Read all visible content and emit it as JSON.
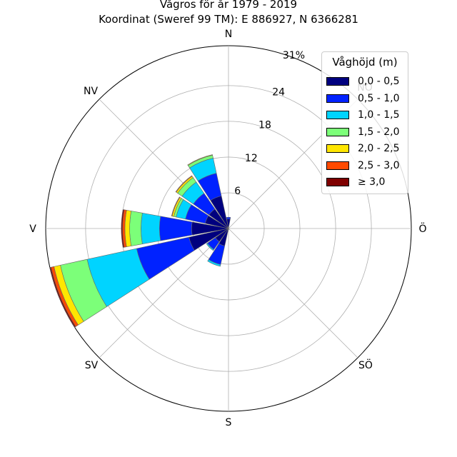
{
  "title_line1": "Vågros för år 1979 - 2019",
  "title_line2": "Koordinat (Sweref 99 TM): E 886927, N 6366281",
  "chart_data": {
    "type": "wind-rose",
    "directions": [
      "N",
      "NO",
      "Ö",
      "SÖ",
      "S",
      "SV",
      "V",
      "NV"
    ],
    "direction_labels": [
      {
        "key": "N",
        "text": "N"
      },
      {
        "key": "NO",
        "text": "NO"
      },
      {
        "key": "E",
        "text": "Ö"
      },
      {
        "key": "SE",
        "text": "SÖ"
      },
      {
        "key": "S",
        "text": "S"
      },
      {
        "key": "SW",
        "text": "SV"
      },
      {
        "key": "W",
        "text": "V"
      },
      {
        "key": "NW",
        "text": "NV"
      }
    ],
    "radial_ticks": [
      "6",
      "12",
      "18",
      "24",
      "31%"
    ],
    "radial_values": [
      6,
      12,
      18,
      24,
      30.7
    ],
    "rmax": 30.7,
    "legend_title": "Våghöjd (m)",
    "bins": [
      {
        "label": "0,0 - 0,5",
        "color": "#00007f"
      },
      {
        "label": "0,5 - 1,0",
        "color": "#0022ff"
      },
      {
        "label": "1,0 - 1,5",
        "color": "#00d4ff"
      },
      {
        "label": "1,5 - 2,0",
        "color": "#7cff79"
      },
      {
        "label": "2,0 - 2,5",
        "color": "#ffe600"
      },
      {
        "label": "2,5 - 3,0",
        "color": "#ff4a00"
      },
      {
        "label": "≥ 3,0",
        "color": "#7f0000"
      }
    ],
    "sectors": [
      {
        "bearing": 0,
        "values": [
          1.6,
          0.3,
          0,
          0,
          0,
          0,
          0
        ]
      },
      {
        "bearing": 180,
        "values": [
          0.2,
          0,
          0,
          0,
          0,
          0,
          0
        ]
      },
      {
        "bearing": 202.5,
        "values": [
          3.0,
          3.2,
          0.3,
          0,
          0,
          0,
          0
        ]
      },
      {
        "bearing": 225,
        "values": [
          2.7,
          1.6,
          0.2,
          0,
          0,
          0,
          0
        ]
      },
      {
        "bearing": 247.5,
        "values": [
          6.8,
          9.0,
          8.5,
          4.6,
          1.1,
          0.5,
          0.2
        ]
      },
      {
        "bearing": 270,
        "values": [
          6.2,
          5.4,
          3.1,
          1.9,
          0.8,
          0.4,
          0.2
        ]
      },
      {
        "bearing": 292.5,
        "values": [
          4.0,
          3.4,
          1.6,
          0.4,
          0.3,
          0.1,
          0
        ]
      },
      {
        "bearing": 315,
        "values": [
          4.0,
          3.2,
          2.3,
          0.9,
          0.3,
          0.1,
          0
        ]
      },
      {
        "bearing": 337.5,
        "values": [
          5.6,
          3.9,
          2.6,
          0.5,
          0.1,
          0,
          0
        ]
      }
    ]
  }
}
